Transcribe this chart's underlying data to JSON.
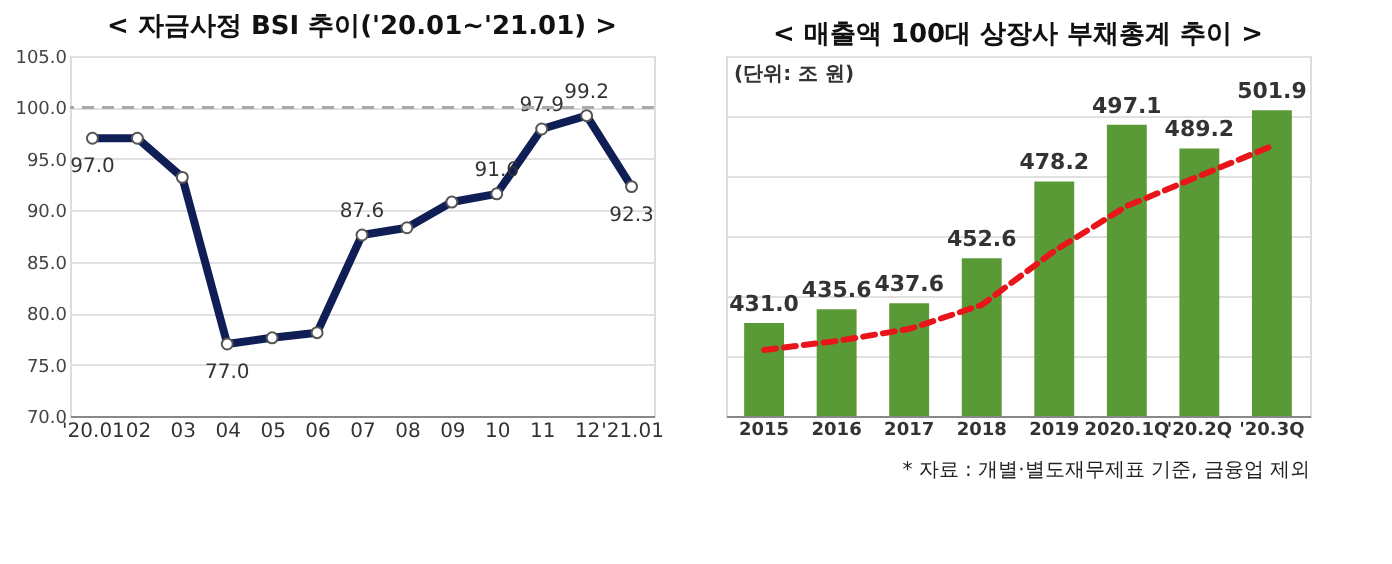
{
  "chart_data": [
    {
      "type": "line",
      "title": "< 자금사정 BSI 추이('20.01~'21.01) >",
      "categories": [
        "'20.01",
        "02",
        "03",
        "04",
        "05",
        "06",
        "07",
        "08",
        "09",
        "10",
        "11",
        "12",
        "'21.01"
      ],
      "series": [
        {
          "color": "#0f1f55",
          "values": [
            97.0,
            97.0,
            93.2,
            77.0,
            77.6,
            78.1,
            87.6,
            88.3,
            90.8,
            91.6,
            97.9,
            99.2,
            92.3
          ],
          "value_labels": [
            "97.0",
            null,
            null,
            "77.0",
            null,
            null,
            "87.6",
            null,
            null,
            "91.6",
            "97.9",
            "99.2",
            "92.3"
          ]
        }
      ],
      "marker": "circle",
      "line_style": "solid",
      "ylim": [
        70,
        105
      ],
      "yticks": [
        {
          "value": 70,
          "label": "70.0"
        },
        {
          "value": 75,
          "label": "75.0"
        },
        {
          "value": 80,
          "label": "80.0"
        },
        {
          "value": 85,
          "label": "85.0"
        },
        {
          "value": 90,
          "label": "90.0"
        },
        {
          "value": 95,
          "label": "95.0"
        },
        {
          "value": 100,
          "label": "100.0"
        },
        {
          "value": 105,
          "label": "105.0"
        }
      ],
      "grid": "y",
      "ref_lines": [
        {
          "axis": "y",
          "value": 100,
          "color": "#aaaaaa",
          "line_style": "dashed"
        }
      ]
    },
    {
      "type": "bar",
      "title": "< 매출액 100대 상장사 부채총계 추이 >",
      "categories": [
        "2015",
        "2016",
        "2017",
        "2018",
        "2019",
        "2020.1Q",
        "'20.2Q",
        "'20.3Q"
      ],
      "series": [
        {
          "color": "#5a9a36",
          "values": [
            431.0,
            435.6,
            437.6,
            452.6,
            478.2,
            497.1,
            489.2,
            501.9
          ],
          "value_labels": [
            "431.0",
            "435.6",
            "437.6",
            "452.6",
            "478.2",
            "497.1",
            "489.2",
            "501.9"
          ]
        },
        {
          "type": "line",
          "color": "#e8161b",
          "line_style": "dashed",
          "values": [
            422,
            425,
            429,
            437,
            455,
            470,
            480,
            490
          ]
        }
      ],
      "ylim": [
        400,
        520
      ],
      "tick_labels": "x",
      "grid": "y",
      "annotations": [
        "(단위: 조 원)",
        "* 자료 : 개별·별도재무제표 기준, 금융업 제외"
      ]
    }
  ]
}
